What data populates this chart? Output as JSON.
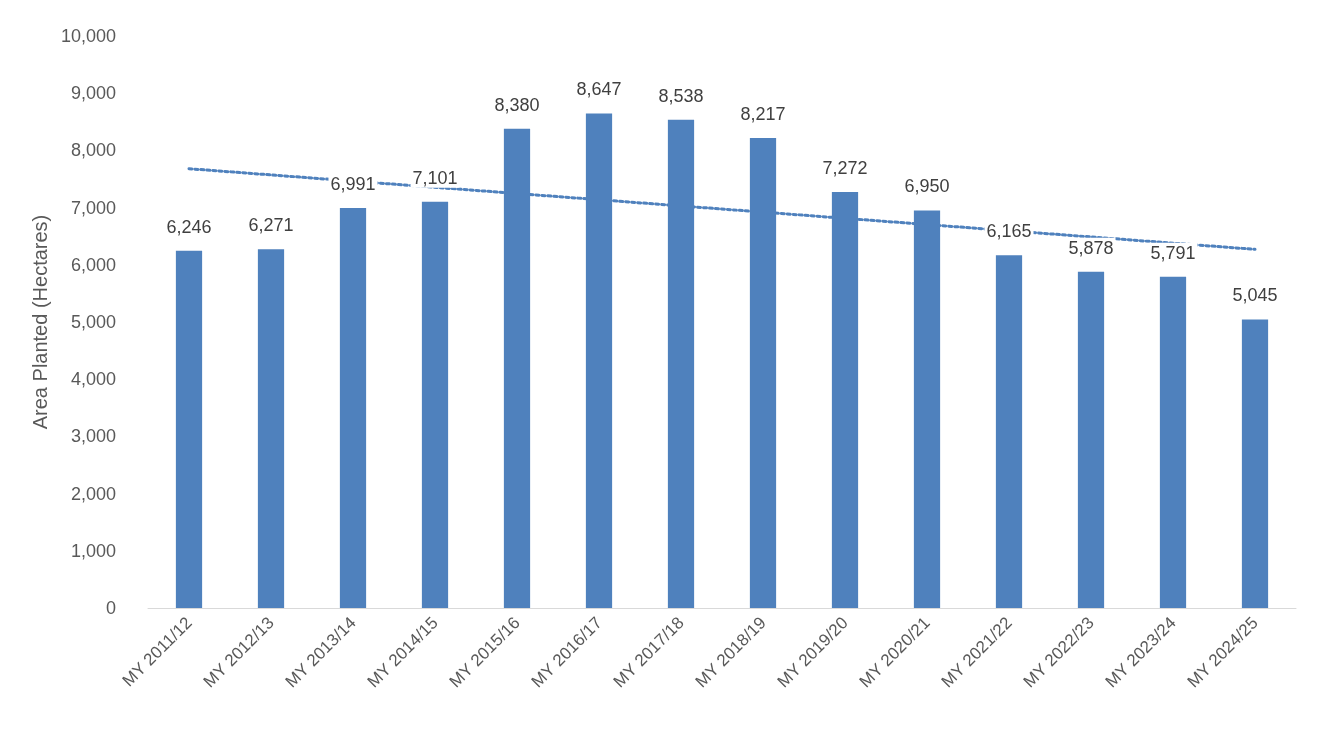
{
  "chart_data": {
    "type": "bar",
    "ylabel": "Area Planted (Hectares)",
    "categories": [
      "MY 2011/12",
      "MY 2012/13",
      "MY 2013/14",
      "MY 2014/15",
      "MY 2015/16",
      "MY 2016/17",
      "MY 2017/18",
      "MY 2018/19",
      "MY 2019/20",
      "MY 2020/21",
      "MY 2021/22",
      "MY 2022/23",
      "MY 2023/24",
      "MY 2024/25"
    ],
    "series": [
      {
        "color": "#4f81bd",
        "values": [
          6246,
          6271,
          6991,
          7101,
          8380,
          8647,
          8538,
          8217,
          7272,
          6950,
          6165,
          5878,
          5791,
          5045
        ],
        "value_labels": [
          "6,246",
          "6,271",
          "6,991",
          "7,101",
          "8,380",
          "8,647",
          "8,538",
          "8,217",
          "7,272",
          "6,950",
          "6,165",
          "5,878",
          "5,791",
          "5,045"
        ]
      },
      {
        "type": "line",
        "color": "#4f81bd",
        "line_style": "dotted",
        "marker": "none",
        "x": [
          "MY 2011/12",
          "MY 2024/25"
        ],
        "values": [
          7680,
          6270
        ]
      }
    ],
    "ylim": [
      0,
      10000
    ],
    "yticks": [
      0,
      {
        "value": 1000,
        "label": "1,000"
      },
      {
        "value": 2000,
        "label": "2,000"
      },
      {
        "value": 3000,
        "label": "3,000"
      },
      {
        "value": 4000,
        "label": "4,000"
      },
      {
        "value": 5000,
        "label": "5,000"
      },
      {
        "value": 6000,
        "label": "6,000"
      },
      {
        "value": 7000,
        "label": "7,000"
      },
      {
        "value": 8000,
        "label": "8,000"
      },
      {
        "value": 9000,
        "label": "9,000"
      },
      {
        "value": 10000,
        "label": "10,000"
      }
    ],
    "grid": false
  }
}
